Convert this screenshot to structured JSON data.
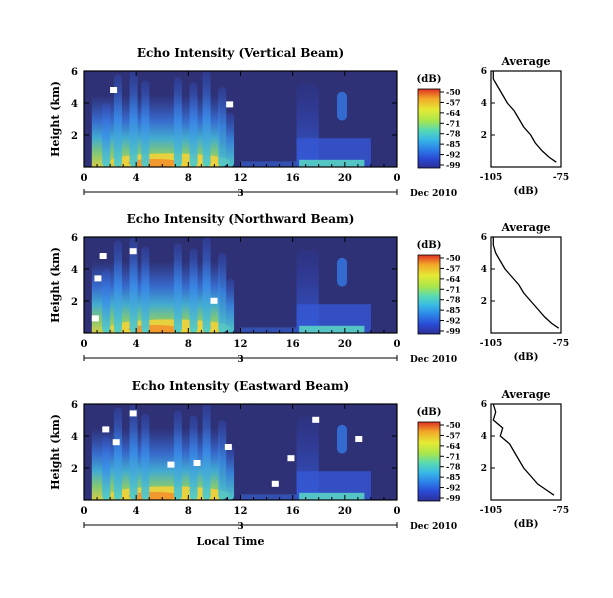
{
  "figure": {
    "time_axis_label": "Local Time",
    "date_label": "Dec 2010",
    "day_label": "3",
    "x_tick_labels": [
      "0",
      "4",
      "8",
      "12",
      "16",
      "20",
      "0"
    ],
    "y_axis_label": "Height (km)",
    "y_tick_labels": [
      "2",
      "4",
      "6"
    ],
    "colorbar_unit": "(dB)",
    "colorbar_ticks": [
      "-50",
      "-57",
      "-64",
      "-71",
      "-78",
      "-85",
      "-92",
      "-99"
    ],
    "colorbar_colors": [
      "#e03024",
      "#f2a628",
      "#e6ea34",
      "#a8e64c",
      "#58dab2",
      "#38b8e6",
      "#2c82e8",
      "#2a4ad6",
      "#2c2f94"
    ],
    "background_color": "#2e3175",
    "average_title": "Average",
    "average_xlabel": "(dB)",
    "average_x_ticks": [
      "-105",
      "-75"
    ],
    "average_y_ticks": [
      "2",
      "4",
      "6"
    ]
  },
  "chart_data": [
    {
      "type": "heatmap",
      "title": "Echo Intensity (Vertical Beam)",
      "xlabel": "",
      "ylabel": "Height (km)",
      "xlim": [
        0,
        24
      ],
      "ylim": [
        0,
        6
      ],
      "x_ticks": [
        0,
        4,
        8,
        12,
        16,
        20,
        24
      ],
      "y_ticks": [
        2,
        4,
        6
      ],
      "colorbar": {
        "label": "(dB)",
        "range": [
          -99,
          -50
        ],
        "ticks": [
          -50,
          -57,
          -64,
          -71,
          -78,
          -85,
          -92,
          -99
        ]
      },
      "average_profile": {
        "title": "Average",
        "xlabel": "(dB)",
        "xlim": [
          -105,
          -75
        ],
        "height_km": [
          0.3,
          0.6,
          1.0,
          1.5,
          2.0,
          2.5,
          3.0,
          3.5,
          4.0,
          4.5,
          5.0,
          5.5,
          6.0
        ],
        "echo_db": [
          -77,
          -80,
          -83,
          -86,
          -88,
          -91,
          -93,
          -95,
          -98,
          -100,
          -102,
          -104,
          -104
        ]
      }
    },
    {
      "type": "heatmap",
      "title": "Echo Intensity (Northward Beam)",
      "xlabel": "",
      "ylabel": "Height (km)",
      "xlim": [
        0,
        24
      ],
      "ylim": [
        0,
        6
      ],
      "x_ticks": [
        0,
        4,
        8,
        12,
        16,
        20,
        24
      ],
      "y_ticks": [
        2,
        4,
        6
      ],
      "colorbar": {
        "label": "(dB)",
        "range": [
          -99,
          -50
        ],
        "ticks": [
          -50,
          -57,
          -64,
          -71,
          -78,
          -85,
          -92,
          -99
        ]
      },
      "average_profile": {
        "title": "Average",
        "xlabel": "(dB)",
        "xlim": [
          -105,
          -75
        ],
        "height_km": [
          0.3,
          0.6,
          1.0,
          1.5,
          2.0,
          2.5,
          3.0,
          3.5,
          4.0,
          4.5,
          5.0,
          5.5,
          6.0
        ],
        "echo_db": [
          -76,
          -79,
          -82,
          -85,
          -88,
          -91,
          -93,
          -96,
          -99,
          -101,
          -103,
          -104,
          -104
        ]
      }
    },
    {
      "type": "heatmap",
      "title": "Echo Intensity (Eastward Beam)",
      "xlabel": "Local Time",
      "ylabel": "Height (km)",
      "xlim": [
        0,
        24
      ],
      "ylim": [
        0,
        6
      ],
      "x_ticks": [
        0,
        4,
        8,
        12,
        16,
        20,
        24
      ],
      "y_ticks": [
        2,
        4,
        6
      ],
      "colorbar": {
        "label": "(dB)",
        "range": [
          -99,
          -50
        ],
        "ticks": [
          -50,
          -57,
          -64,
          -71,
          -78,
          -85,
          -92,
          -99
        ]
      },
      "average_profile": {
        "title": "Average",
        "xlabel": "(dB)",
        "xlim": [
          -105,
          -75
        ],
        "height_km": [
          0.3,
          0.6,
          1.0,
          1.5,
          2.0,
          2.5,
          3.0,
          3.5,
          4.0,
          4.5,
          5.0,
          5.5,
          6.0
        ],
        "echo_db": [
          -78,
          -81,
          -85,
          -88,
          -91,
          -93,
          -95,
          -97,
          -101,
          -100,
          -104,
          -103,
          -104
        ]
      }
    }
  ]
}
